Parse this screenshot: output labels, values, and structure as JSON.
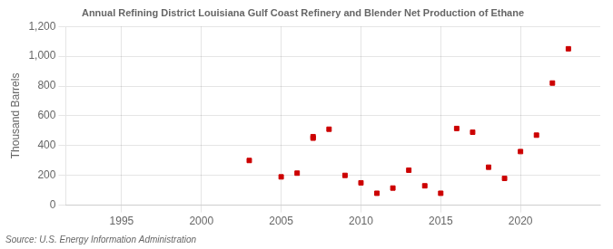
{
  "chart_data": {
    "type": "scatter",
    "title": "Annual Refining District Louisiana Gulf Coast Refinery and Blender Net Production of Ethane",
    "ylabel": "Thousand Barrels",
    "annotation": "Source: U.S. Energy Information Administration",
    "color": "#cc0000",
    "marker": "square",
    "grid": true,
    "x": [
      2003,
      2005,
      2006,
      2007,
      2007,
      2008,
      2009,
      2010,
      2011,
      2012,
      2013,
      2014,
      2015,
      2016,
      2017,
      2018,
      2019,
      2020,
      2021,
      2022,
      2023
    ],
    "values": [
      300,
      190,
      215,
      460,
      450,
      510,
      200,
      150,
      80,
      115,
      235,
      130,
      80,
      515,
      490,
      255,
      180,
      360,
      470,
      820,
      1050
    ],
    "xlim": [
      1991.5,
      2025
    ],
    "xticks": [
      1995,
      2000,
      2005,
      2010,
      2015,
      2020
    ],
    "ylim": [
      0,
      1200
    ],
    "yticks": [
      0,
      200,
      400,
      600,
      800,
      {
        "value": 1000,
        "label": "1,000"
      },
      {
        "value": 1200,
        "label": "1,200"
      }
    ]
  }
}
